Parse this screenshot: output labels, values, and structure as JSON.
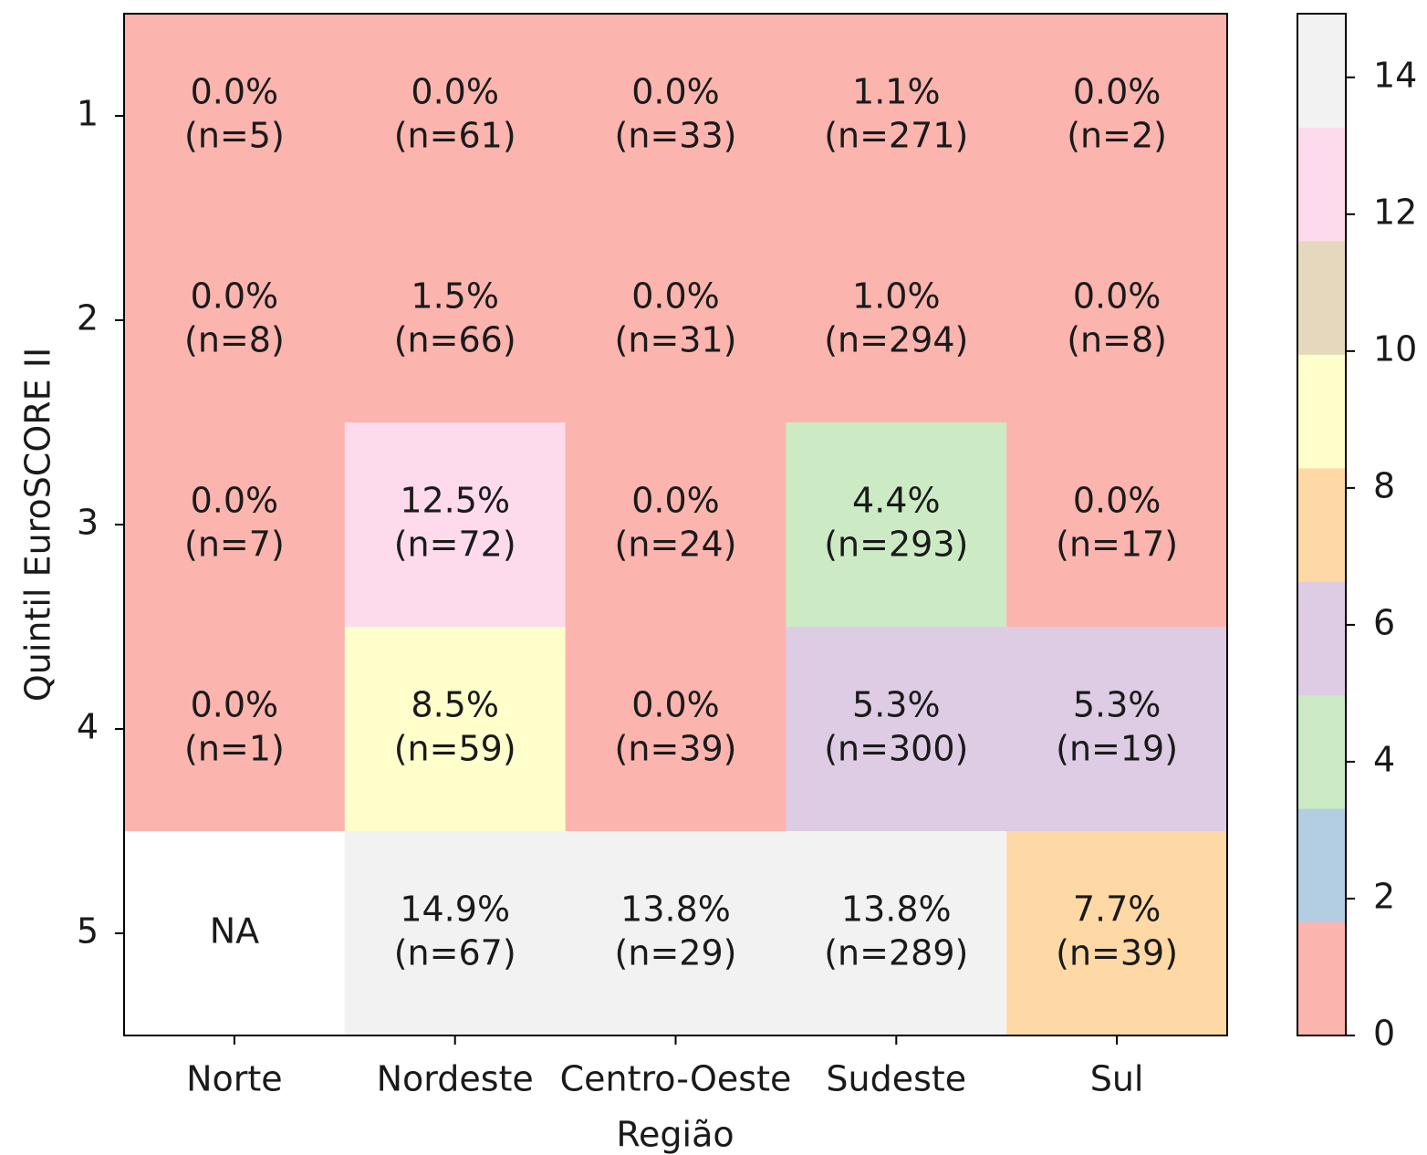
{
  "chart_data": {
    "type": "heatmap",
    "x_label": "Região",
    "y_label": "Quintil EuroSCORE II",
    "categories": [
      "Norte",
      "Nordeste",
      "Centro-Oeste",
      "Sudeste",
      "Sul"
    ],
    "y_categories": [
      "1",
      "2",
      "3",
      "4",
      "5"
    ],
    "values": [
      [
        0.0,
        0.0,
        0.0,
        1.1,
        0.0
      ],
      [
        0.0,
        1.5,
        0.0,
        1.0,
        0.0
      ],
      [
        0.0,
        12.5,
        0.0,
        4.4,
        0.0
      ],
      [
        0.0,
        8.5,
        0.0,
        5.3,
        5.3
      ],
      [
        null,
        14.9,
        13.8,
        13.8,
        7.7
      ]
    ],
    "value_labels": [
      [
        "0.0%",
        "0.0%",
        "0.0%",
        "1.1%",
        "0.0%"
      ],
      [
        "0.0%",
        "1.5%",
        "0.0%",
        "1.0%",
        "0.0%"
      ],
      [
        "0.0%",
        "12.5%",
        "0.0%",
        "4.4%",
        "0.0%"
      ],
      [
        "0.0%",
        "8.5%",
        "0.0%",
        "5.3%",
        "5.3%"
      ],
      [
        "NA",
        "14.9%",
        "13.8%",
        "13.8%",
        "7.7%"
      ]
    ],
    "n": [
      [
        5,
        61,
        33,
        271,
        2
      ],
      [
        8,
        66,
        31,
        294,
        8
      ],
      [
        7,
        72,
        24,
        293,
        17
      ],
      [
        1,
        59,
        39,
        300,
        19
      ],
      [
        null,
        67,
        29,
        289,
        39
      ]
    ],
    "n_labels": [
      [
        "(n=5)",
        "(n=61)",
        "(n=33)",
        "(n=271)",
        "(n=2)"
      ],
      [
        "(n=8)",
        "(n=66)",
        "(n=31)",
        "(n=294)",
        "(n=8)"
      ],
      [
        "(n=7)",
        "(n=72)",
        "(n=24)",
        "(n=293)",
        "(n=17)"
      ],
      [
        "(n=1)",
        "(n=59)",
        "(n=39)",
        "(n=300)",
        "(n=19)"
      ],
      [
        null,
        "(n=67)",
        "(n=29)",
        "(n=289)",
        "(n=39)"
      ]
    ],
    "colormap": [
      "#fbb4ae",
      "#b3cde3",
      "#ccebc5",
      "#decbe4",
      "#fed9a6",
      "#ffffcc",
      "#e5d8bd",
      "#fddaec",
      "#f2f2f2"
    ],
    "clim": [
      0,
      14.93
    ],
    "cticks": [
      0,
      2,
      4,
      6,
      8,
      10,
      12,
      14
    ]
  }
}
